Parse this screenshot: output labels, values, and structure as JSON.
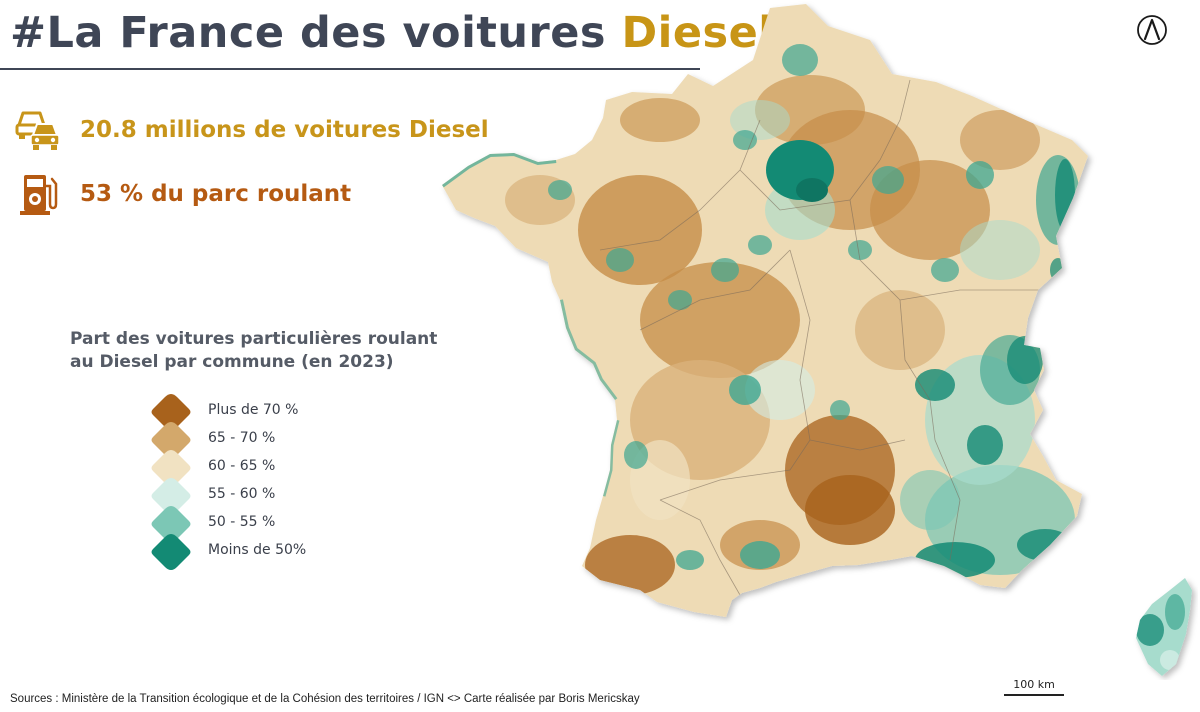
{
  "title": {
    "prefix": "#La France des voitures",
    "highlight": "Diesel"
  },
  "stats": [
    {
      "icon": "cars-icon",
      "text": "20.8 millions de voitures Diesel",
      "color": "#c8951a"
    },
    {
      "icon": "fuel-pump-icon",
      "text": "53 % du parc roulant",
      "color": "#b55a12"
    }
  ],
  "legend": {
    "title": "Part des voitures particulières roulant au Diesel par commune (en 2023)",
    "items": [
      {
        "label": "Plus de 70 %",
        "color": "#a8621c"
      },
      {
        "label": "65 - 70 %",
        "color": "#d3a86b"
      },
      {
        "label": "60 - 65 %",
        "color": "#f1e2c2"
      },
      {
        "label": "55 - 60 %",
        "color": "#d4ede6"
      },
      {
        "label": "50 - 55 %",
        "color": "#7cc7b5"
      },
      {
        "label": "Moins de 50%",
        "color": "#138a74"
      }
    ]
  },
  "map": {
    "north_icon": "north-arrow-icon",
    "scale_label": "100 km"
  },
  "sources": "Sources : Ministère de la Transition écologique et de la Cohésion des territoires / IGN  <> Carte réalisée par Boris Mericskay"
}
